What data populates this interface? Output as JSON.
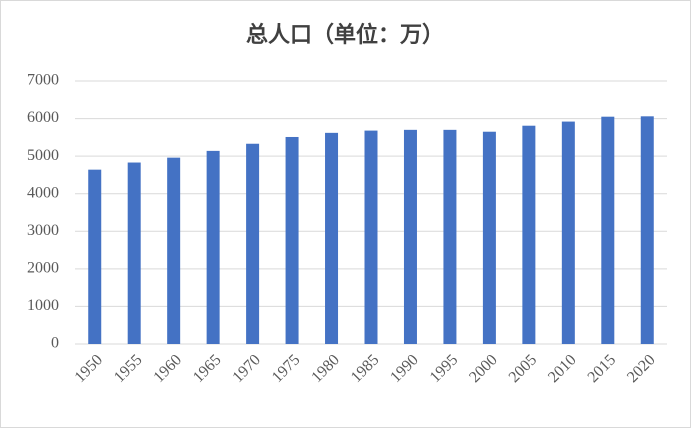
{
  "chart_data": {
    "type": "bar",
    "title": "总人口（单位：万）",
    "categories": [
      "1950",
      "1955",
      "1960",
      "1965",
      "1970",
      "1975",
      "1980",
      "1985",
      "1990",
      "1995",
      "2000",
      "2005",
      "2010",
      "2015",
      "2020"
    ],
    "values": [
      4640,
      4830,
      4960,
      5140,
      5330,
      5510,
      5620,
      5680,
      5700,
      5700,
      5650,
      5810,
      5920,
      6050,
      6060
    ],
    "color": "#4472c4",
    "ylim": [
      0,
      7000
    ],
    "yticks": [
      0,
      1000,
      2000,
      3000,
      4000,
      5000,
      6000,
      7000
    ],
    "grid": true
  }
}
